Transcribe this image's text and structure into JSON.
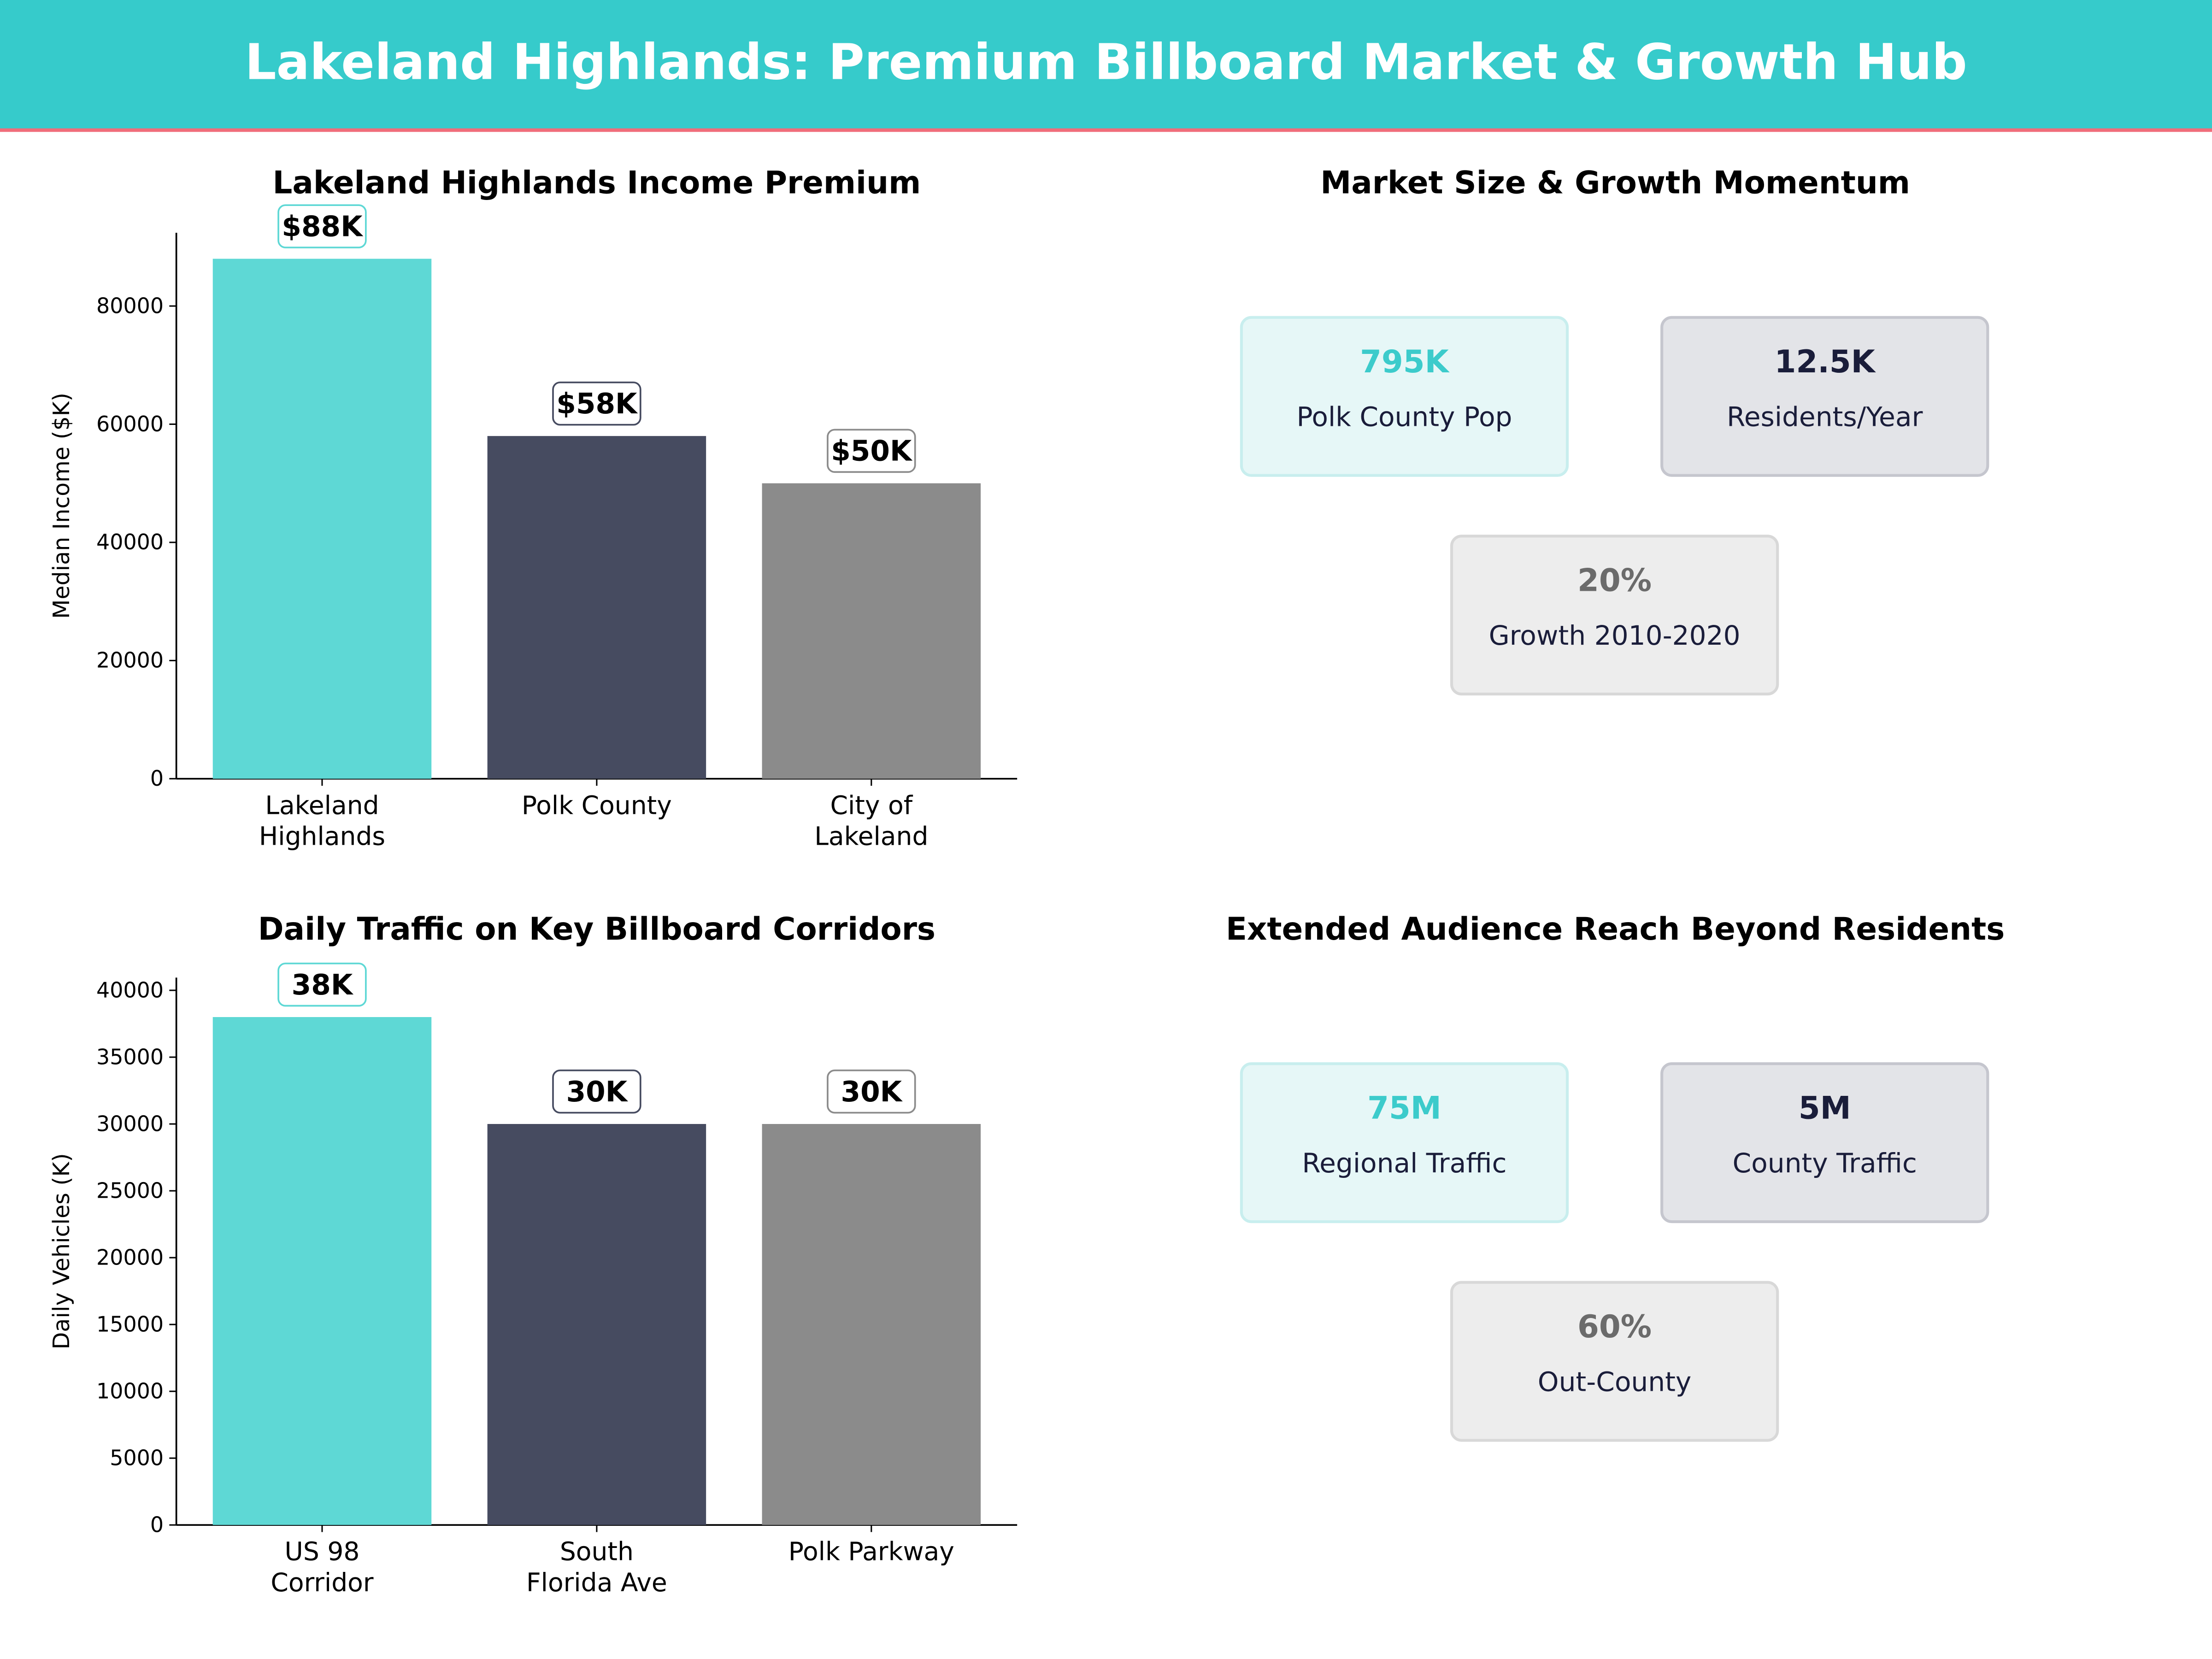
{
  "header": {
    "title": "Lakeland Highlands: Premium Billboard Market & Growth Hub"
  },
  "colors": {
    "header_bg": "#36CBCB",
    "header_line": "#F06D7A",
    "teal": "#5ED8D5",
    "navy": "#464B60",
    "gray": "#8B8B8B"
  },
  "chart_data": [
    {
      "type": "bar",
      "title": "Lakeland Highlands Income Premium",
      "ylabel": "Median Income ($K)",
      "categories": [
        [
          "Lakeland",
          "Highlands"
        ],
        [
          "Polk County"
        ],
        [
          "City of",
          "Lakeland"
        ]
      ],
      "values": [
        88000,
        58000,
        50000
      ],
      "data_labels": [
        "$88K",
        "$58K",
        "$50K"
      ],
      "yticks": [
        0,
        20000,
        40000,
        60000,
        80000
      ],
      "ylim": [
        0,
        92400
      ],
      "bar_colors": [
        "#5ED8D5",
        "#464B60",
        "#8B8B8B"
      ],
      "label_borders": [
        "#5ED8D5",
        "#464B60",
        "#8B8B8B"
      ],
      "grid": false
    },
    {
      "type": "bar",
      "title": "Daily Traffic on Key Billboard Corridors",
      "ylabel": "Daily Vehicles (K)",
      "categories": [
        [
          "US 98",
          "Corridor"
        ],
        [
          "South",
          "Florida Ave"
        ],
        [
          "Polk Parkway"
        ]
      ],
      "values": [
        38000,
        30000,
        30000
      ],
      "data_labels": [
        "38K",
        "30K",
        "30K"
      ],
      "yticks": [
        0,
        5000,
        10000,
        15000,
        20000,
        25000,
        30000,
        35000,
        40000
      ],
      "ylim": [
        0,
        40950
      ],
      "bar_colors": [
        "#5ED8D5",
        "#464B60",
        "#8B8B8B"
      ],
      "label_borders": [
        "#5ED8D5",
        "#464B60",
        "#8B8B8B"
      ],
      "grid": false
    }
  ],
  "panels": [
    {
      "title": "Market Size & Growth Momentum",
      "cards": [
        {
          "value": "795K",
          "label": "Polk County Pop",
          "style": "teal"
        },
        {
          "value": "12.5K",
          "label": "Residents/Year",
          "style": "navy"
        },
        {
          "value": "20%",
          "label": "Growth 2010-2020",
          "style": "gray"
        }
      ]
    },
    {
      "title": "Extended Audience Reach Beyond Residents",
      "cards": [
        {
          "value": "75M",
          "label": "Regional Traffic",
          "style": "teal"
        },
        {
          "value": "5M",
          "label": "County Traffic",
          "style": "navy"
        },
        {
          "value": "60%",
          "label": "Out-County",
          "style": "gray"
        }
      ]
    }
  ]
}
